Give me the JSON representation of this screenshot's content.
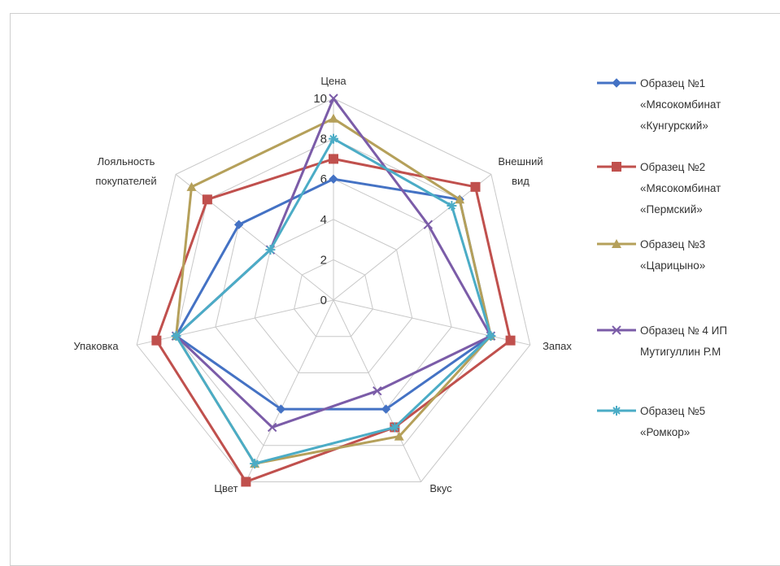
{
  "chart_data": {
    "type": "radar",
    "axes": [
      "Цена",
      "Внешний вид",
      "Запах",
      "Вкус",
      "Цвет",
      "Упаковка",
      "Лояльность покупателей"
    ],
    "axis_label_lines": [
      [
        "Цена"
      ],
      [
        "Внешний",
        "вид"
      ],
      [
        "Запах"
      ],
      [
        "Вкус"
      ],
      [
        "Цвет"
      ],
      [
        "Упаковка"
      ],
      [
        "Лояльность",
        "покупателей"
      ]
    ],
    "r_range": [
      0,
      10
    ],
    "r_ticks": [
      0,
      2,
      4,
      6,
      8,
      10
    ],
    "tick_labels": [
      "0",
      "2",
      "4",
      "6",
      "8",
      "10"
    ],
    "grid": true,
    "legend_position": "right",
    "series": [
      {
        "name": "Образец №1 «Мясокомбинат «Кунгурский»",
        "legend_lines": [
          "Образец №1",
          "«Мясокомбинат",
          "«Кунгурский»"
        ],
        "marker": "diamond",
        "color": "#4472c4",
        "values": [
          6,
          8,
          8,
          6,
          6,
          8,
          6
        ]
      },
      {
        "name": "Образец №2 «Мясокомбинат «Пермский»",
        "legend_lines": [
          "Образец №2",
          "«Мясокомбинат",
          "«Пермский»"
        ],
        "marker": "square",
        "color": "#c0504d",
        "values": [
          7,
          9,
          9,
          7,
          10,
          9,
          8
        ]
      },
      {
        "name": "Образец №3 «Царицыно»",
        "legend_lines": [
          "Образец №3",
          "«Царицыно»"
        ],
        "marker": "triangle",
        "color": "#b5a05a",
        "values": [
          9,
          8,
          8,
          7.5,
          9,
          8,
          9
        ]
      },
      {
        "name": "Образец № 4 ИП Мутигуллин Р.М",
        "legend_lines": [
          "Образец № 4 ИП",
          "Мутигуллин Р.М"
        ],
        "marker": "x",
        "color": "#7b5ca8",
        "values": [
          10,
          6,
          8,
          5,
          7,
          8,
          4
        ]
      },
      {
        "name": "Образец №5 «Ромкор»",
        "legend_lines": [
          "Образец №5",
          "«Ромкор»"
        ],
        "marker": "star",
        "color": "#4bacc6",
        "values": [
          8,
          7.5,
          8,
          7,
          9,
          8,
          4
        ]
      }
    ]
  }
}
